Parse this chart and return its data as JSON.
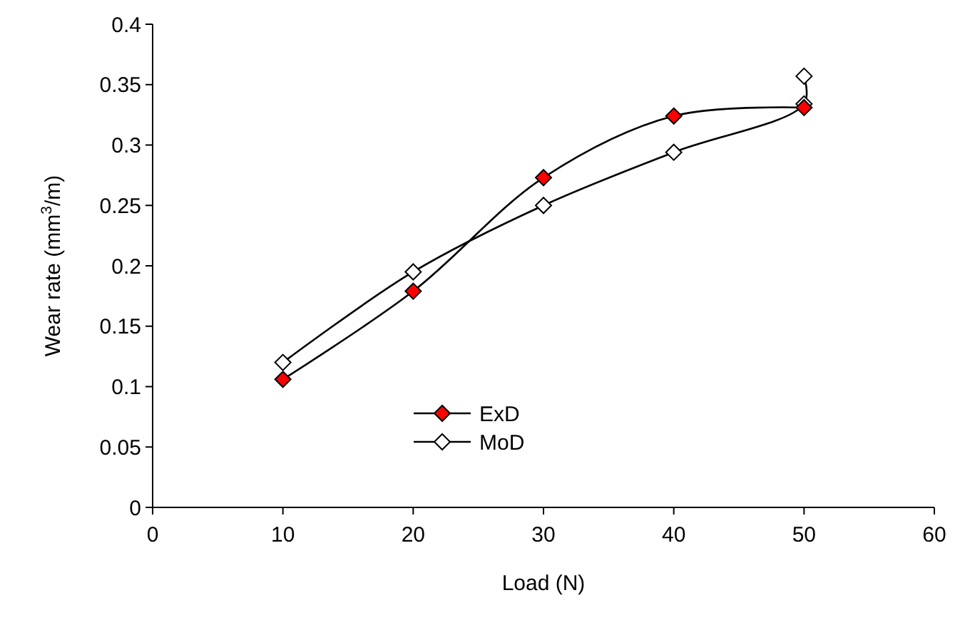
{
  "chart_data": {
    "type": "line",
    "xlabel": "Load (N)",
    "ylabel": "Wear rate (mm$^{3}$/m)",
    "xlim": [
      0,
      60
    ],
    "xticks": [
      0,
      10,
      20,
      30,
      40,
      50,
      60
    ],
    "ylim": [
      0,
      0.4
    ],
    "yticks": [
      0,
      0.05,
      0.1,
      0.15,
      0.2,
      0.25,
      0.3,
      0.35,
      0.4
    ],
    "grid": false,
    "legend": "bottom left",
    "marker": "diamond",
    "line_style": "solid",
    "series": [
      {
        "name": "ExD",
        "color": "#ff0000",
        "x": [
          10,
          20,
          30,
          40,
          50
        ],
        "values": [
          0.106,
          0.179,
          0.273,
          0.324,
          0.331
        ]
      },
      {
        "name": "MoD",
        "color": "#ffffff",
        "x": [
          10,
          20,
          30,
          40,
          50,
          50
        ],
        "values": [
          0.12,
          0.195,
          0.25,
          0.294,
          0.334,
          0.357
        ]
      }
    ]
  }
}
